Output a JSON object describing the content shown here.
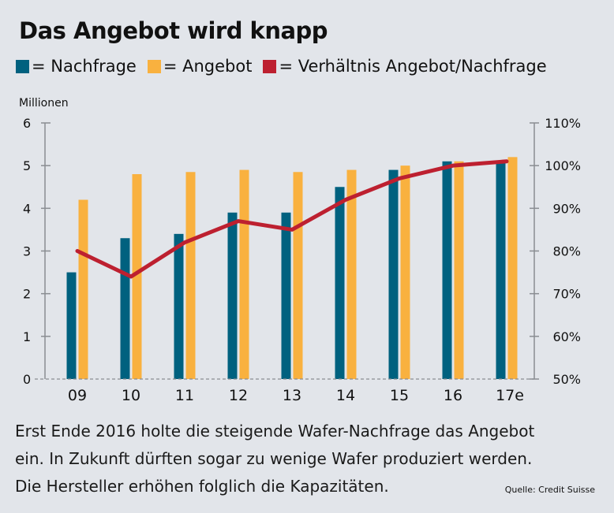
{
  "title": "Das Angebot wird knapp",
  "legend": [
    {
      "label": "= Nachfrage",
      "color": "#00617f"
    },
    {
      "label": "= Angebot",
      "color": "#f9b13f"
    },
    {
      "label": "= Verhältnis Angebot/Nachfrage",
      "color": "#bd2030"
    }
  ],
  "caption_lines": [
    "Erst Ende 2016 holte die steigende Wafer-Nachfrage das Angebot",
    "ein. In Zukunft dürften sogar zu wenige Wafer produziert werden.",
    "Die Hersteller erhöhen folglich die Kapazitäten."
  ],
  "source": "Quelle: Credit Suisse",
  "chart_data": {
    "type": "bar",
    "title": "Das Angebot wird knapp",
    "ylabel": "Millionen",
    "xlabel": "",
    "categories": [
      "09",
      "10",
      "11",
      "12",
      "13",
      "14",
      "15",
      "16",
      "17e"
    ],
    "ylim": [
      0,
      6
    ],
    "yticks": [
      "0",
      "1",
      "2",
      "3",
      "4",
      "5",
      "6"
    ],
    "y2lim": [
      50,
      110
    ],
    "y2ticks": [
      "50%",
      "60%",
      "70%",
      "80%",
      "90%",
      "100%",
      "110%"
    ],
    "grid": false,
    "legend_position": "top",
    "series": [
      {
        "name": "Nachfrage",
        "type": "bar",
        "axis": "left",
        "color": "#00617f",
        "values": [
          2.5,
          3.3,
          3.4,
          3.9,
          3.9,
          4.5,
          4.9,
          5.1,
          5.1
        ]
      },
      {
        "name": "Angebot",
        "type": "bar",
        "axis": "left",
        "color": "#f9b13f",
        "values": [
          4.2,
          4.8,
          4.85,
          4.9,
          4.85,
          4.9,
          5.0,
          5.1,
          5.2
        ]
      },
      {
        "name": "Verhältnis Angebot/Nachfrage",
        "type": "line",
        "axis": "right",
        "color": "#bd2030",
        "values": [
          80,
          74,
          82,
          87,
          85,
          92,
          97,
          100,
          101
        ]
      }
    ]
  }
}
